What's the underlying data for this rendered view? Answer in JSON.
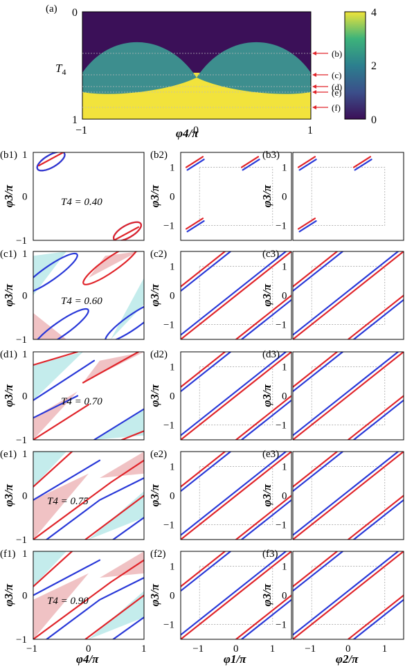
{
  "top": {
    "panel_label": "(a)",
    "ylabel_T": "T",
    "ylabel_sub": "4",
    "xlabel": "φ4/π",
    "y_ticks": [
      "0",
      "1"
    ],
    "x_ticks": [
      "−1",
      "0",
      "1"
    ],
    "markers": [
      "(b)",
      "(c)",
      "(d)",
      "(e)",
      "(f)"
    ],
    "colorbar_ticks": [
      "4",
      "2",
      "0"
    ]
  },
  "col1": {
    "ylabel": "φ3/π",
    "xlabel": "φ4/π",
    "y_ticks": [
      "1",
      "0",
      "−1"
    ],
    "x_ticks": [
      "−1",
      "0",
      "1"
    ]
  },
  "col23": {
    "ylabel": "φ3/π",
    "xlabel2": "φ1/π",
    "xlabel3": "φ2/π",
    "y_ticks": [
      "1",
      "0",
      "−1"
    ],
    "x_ticks": [
      "−1",
      "0",
      "1"
    ]
  },
  "rows": [
    {
      "l1": "(b1)",
      "l2": "(b2)",
      "l3": "(b3)",
      "t": "T4 = 0.40"
    },
    {
      "l1": "(c1)",
      "l2": "(c2)",
      "l3": "(c3)",
      "t": "T4 = 0.60"
    },
    {
      "l1": "(d1)",
      "l2": "(d2)",
      "l3": "(d3)",
      "t": "T4 = 0.70"
    },
    {
      "l1": "(e1)",
      "l2": "(e2)",
      "l3": "(e3)",
      "t": "T4 = 0.75"
    },
    {
      "l1": "(f1)",
      "l2": "(f2)",
      "l3": "(f3)",
      "t": "T4 = 0.90"
    }
  ],
  "colors": {
    "red": "#e0242a",
    "blue": "#2838d8",
    "cyan": "#c4ecec",
    "pink": "#f0c2c4",
    "dark": "#3b1058",
    "teal": "#3d8e8e",
    "yellow": "#f2e33c"
  }
}
